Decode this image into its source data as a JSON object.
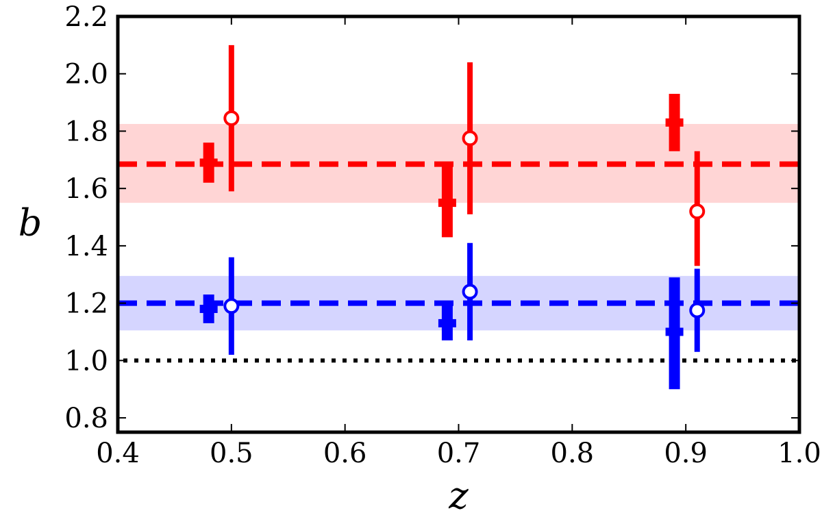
{
  "chart_data": {
    "type": "scatter",
    "title": "",
    "xlabel": "z",
    "ylabel": "b",
    "xlim": [
      0.4,
      1.0
    ],
    "ylim": [
      0.75,
      2.2
    ],
    "xticks": [
      "0.4",
      "0.5",
      "0.6",
      "0.7",
      "0.8",
      "0.9",
      "1.0"
    ],
    "yticks": [
      "0.8",
      "1.0",
      "1.2",
      "1.4",
      "1.6",
      "1.8",
      "2.0",
      "2.2"
    ],
    "grid": false,
    "legend": "none",
    "reference_line": {
      "y": 1.0,
      "style": "dotted",
      "color": "#000000"
    },
    "colors": {
      "red": "#ff0000",
      "blue": "#0000ff",
      "red_band": "#ffd5d5",
      "blue_band": "#d5d5ff"
    },
    "series": [
      {
        "color": "red",
        "mean": 1.685,
        "band": [
          1.55,
          1.825
        ],
        "filled_points": [
          {
            "x": 0.48,
            "y": 1.69,
            "ylow": 1.62,
            "yhigh": 1.76
          },
          {
            "x": 0.69,
            "y": 1.55,
            "ylow": 1.43,
            "yhigh": 1.68
          },
          {
            "x": 0.89,
            "y": 1.83,
            "ylow": 1.73,
            "yhigh": 1.93
          }
        ],
        "open_points": [
          {
            "x": 0.5,
            "y": 1.845,
            "ylow": 1.59,
            "yhigh": 2.1
          },
          {
            "x": 0.71,
            "y": 1.775,
            "ylow": 1.51,
            "yhigh": 2.04
          },
          {
            "x": 0.91,
            "y": 1.52,
            "ylow": 1.33,
            "yhigh": 1.73
          }
        ]
      },
      {
        "color": "blue",
        "mean": 1.2,
        "band": [
          1.105,
          1.295
        ],
        "filled_points": [
          {
            "x": 0.48,
            "y": 1.18,
            "ylow": 1.13,
            "yhigh": 1.23
          },
          {
            "x": 0.69,
            "y": 1.13,
            "ylow": 1.07,
            "yhigh": 1.2
          },
          {
            "x": 0.89,
            "y": 1.1,
            "ylow": 0.9,
            "yhigh": 1.29
          }
        ],
        "open_points": [
          {
            "x": 0.5,
            "y": 1.19,
            "ylow": 1.02,
            "yhigh": 1.36
          },
          {
            "x": 0.71,
            "y": 1.24,
            "ylow": 1.07,
            "yhigh": 1.41
          },
          {
            "x": 0.91,
            "y": 1.175,
            "ylow": 1.03,
            "yhigh": 1.32
          }
        ]
      }
    ]
  }
}
